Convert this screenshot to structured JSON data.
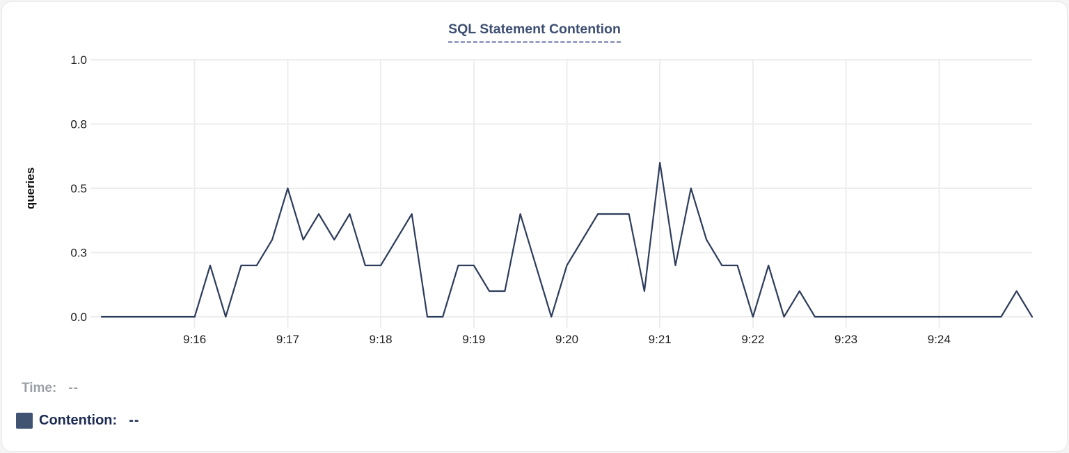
{
  "header": {
    "title": "SQL Statement Contention"
  },
  "chart_data": {
    "type": "line",
    "title": "SQL Statement Contention",
    "xlabel": "",
    "ylabel": "queries",
    "ylim": [
      0,
      1.0
    ],
    "grid": true,
    "legend_position": "bottom-left",
    "y_ticks": [
      {
        "value": 0,
        "label": "0.0"
      },
      {
        "value": 0.25,
        "label": "0.3"
      },
      {
        "value": 0.5,
        "label": "0.5"
      },
      {
        "value": 0.75,
        "label": "0.8"
      },
      {
        "value": 1.0,
        "label": "1.0"
      }
    ],
    "x_start": "9:15:00",
    "x_end": "9:25:00",
    "interval_seconds": 10,
    "x_ticks": [
      "9:16",
      "9:17",
      "9:18",
      "9:19",
      "9:20",
      "9:21",
      "9:22",
      "9:23",
      "9:24"
    ],
    "series": [
      {
        "name": "Contention",
        "color": "#2e3d5c",
        "units": "queries",
        "times": [
          "9:15:00",
          "9:15:10",
          "9:15:20",
          "9:15:30",
          "9:15:40",
          "9:15:50",
          "9:16:00",
          "9:16:10",
          "9:16:20",
          "9:16:30",
          "9:16:40",
          "9:16:50",
          "9:17:00",
          "9:17:10",
          "9:17:20",
          "9:17:30",
          "9:17:40",
          "9:17:50",
          "9:18:00",
          "9:18:10",
          "9:18:20",
          "9:18:30",
          "9:18:40",
          "9:18:50",
          "9:19:00",
          "9:19:10",
          "9:19:20",
          "9:19:30",
          "9:19:40",
          "9:19:50",
          "9:20:00",
          "9:20:10",
          "9:20:20",
          "9:20:30",
          "9:20:40",
          "9:20:50",
          "9:21:00",
          "9:21:10",
          "9:21:20",
          "9:21:30",
          "9:21:40",
          "9:21:50",
          "9:22:00",
          "9:22:10",
          "9:22:20",
          "9:22:30",
          "9:22:40",
          "9:22:50",
          "9:23:00",
          "9:23:10",
          "9:23:20",
          "9:23:30",
          "9:23:40",
          "9:23:50",
          "9:24:00",
          "9:24:10",
          "9:24:20",
          "9:24:30",
          "9:24:40",
          "9:24:50",
          "9:25:00"
        ],
        "values": [
          0,
          0,
          0,
          0,
          0,
          0,
          0,
          0.2,
          0,
          0.2,
          0.2,
          0.3,
          0.5,
          0.3,
          0.4,
          0.3,
          0.4,
          0.2,
          0.2,
          0.3,
          0.4,
          0,
          0,
          0.2,
          0.2,
          0.1,
          0.1,
          0.4,
          0.2,
          0,
          0.2,
          0.3,
          0.4,
          0.4,
          0.4,
          0.1,
          0.6,
          0.2,
          0.5,
          0.3,
          0.2,
          0.2,
          0,
          0.2,
          0,
          0.1,
          0,
          0,
          0,
          0,
          0,
          0,
          0,
          0,
          0,
          0,
          0,
          0,
          0,
          0.1,
          0
        ]
      }
    ]
  },
  "legend": {
    "time_label": "Time:",
    "time_value": "--",
    "contention_label": "Contention:",
    "contention_value": "--"
  },
  "colors": {
    "page_bg": "#f4f4f5",
    "card_bg": "#ffffff",
    "card_border": "#e9e9ea",
    "title": "#3d4f72",
    "title_underline": "#98a1c3",
    "grid": "#ededee",
    "axis_text": "#1d1d1f",
    "line": "#2e3d5c",
    "swatch": "#405370",
    "legend_muted": "#9b9fa5",
    "legend_navy": "#1c2b52"
  }
}
